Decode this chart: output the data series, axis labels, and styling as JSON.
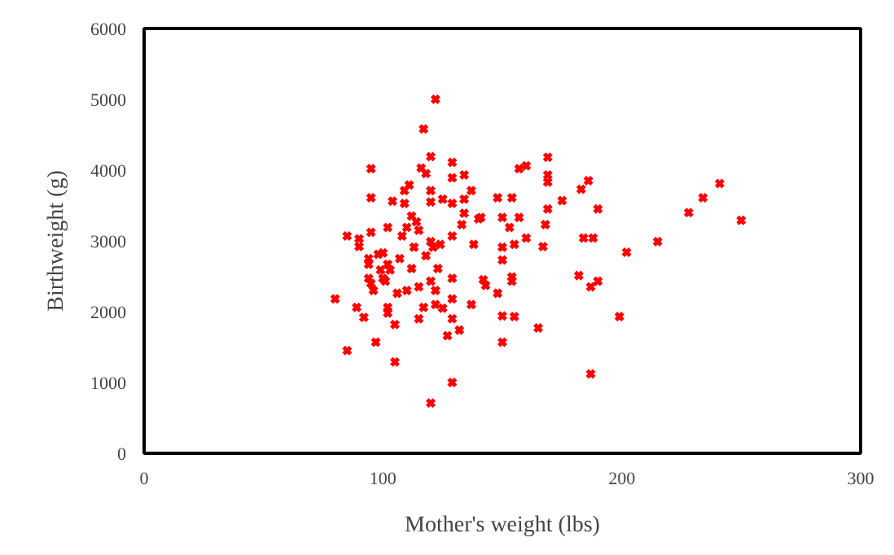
{
  "chart_data": {
    "type": "scatter",
    "xlabel": "Mother's weight (lbs)",
    "ylabel": "Birthweight (g)",
    "xlim": [
      0,
      300
    ],
    "ylim": [
      0,
      6000
    ],
    "xticks": [
      0,
      100,
      200,
      300
    ],
    "yticks": [
      0,
      1000,
      2000,
      3000,
      4000,
      5000,
      6000
    ],
    "marker": "cross",
    "series": [
      {
        "color": "#ff0000",
        "x": [
          80,
          85,
          85,
          89,
          90,
          90,
          92,
          95,
          95,
          95,
          94,
          94,
          94,
          95,
          96,
          97,
          98,
          100,
          102,
          99,
          100,
          101,
          102,
          102,
          102,
          103,
          104,
          105,
          105,
          106,
          107,
          108,
          109,
          109,
          110,
          110,
          111,
          112,
          112,
          113,
          114,
          115,
          115,
          115,
          116,
          117,
          117,
          118,
          118,
          120,
          120,
          120,
          120,
          120,
          120,
          121,
          122,
          122,
          122,
          123,
          124,
          125,
          125,
          127,
          129,
          129,
          129,
          129,
          129,
          129,
          129,
          129,
          132,
          133,
          134,
          134,
          134,
          137,
          137,
          138,
          140,
          141,
          142,
          143,
          148,
          148,
          150,
          150,
          150,
          150,
          150,
          153,
          154,
          154,
          154,
          155,
          155,
          157,
          157,
          160,
          160,
          165,
          167,
          168,
          169,
          169,
          169,
          169,
          175,
          182,
          183,
          186,
          184,
          188,
          187,
          187,
          190,
          190,
          199,
          202,
          215,
          228,
          234,
          241,
          250
        ],
        "values": [
          2180,
          3070,
          1450,
          2060,
          3030,
          2920,
          1920,
          4020,
          3610,
          3120,
          2750,
          2670,
          2470,
          2400,
          2300,
          1570,
          2810,
          2830,
          3190,
          2590,
          2470,
          2430,
          2060,
          1980,
          2670,
          2590,
          3560,
          1820,
          1290,
          2260,
          2750,
          3070,
          3710,
          3530,
          3190,
          2300,
          3790,
          3350,
          2610,
          2910,
          3270,
          3150,
          2350,
          1900,
          4030,
          4580,
          2060,
          2790,
          3950,
          4190,
          3710,
          3550,
          2990,
          2430,
          710,
          2910,
          5000,
          2300,
          2100,
          2610,
          2950,
          3590,
          2050,
          1660,
          4110,
          3530,
          3890,
          3070,
          2470,
          2180,
          1900,
          1000,
          1740,
          3230,
          3930,
          3590,
          3390,
          3710,
          2100,
          2950,
          3310,
          3330,
          2450,
          2370,
          2260,
          3610,
          3330,
          2910,
          2730,
          1940,
          1570,
          3190,
          3610,
          2430,
          2490,
          2950,
          1930,
          4020,
          3330,
          4060,
          3040,
          1770,
          2920,
          3230,
          4180,
          3930,
          3830,
          3450,
          3570,
          2510,
          3730,
          3850,
          3040,
          3040,
          2350,
          1120,
          3450,
          2430,
          1930,
          2840,
          2990,
          3400,
          3610,
          3810,
          3290
        ]
      }
    ]
  }
}
